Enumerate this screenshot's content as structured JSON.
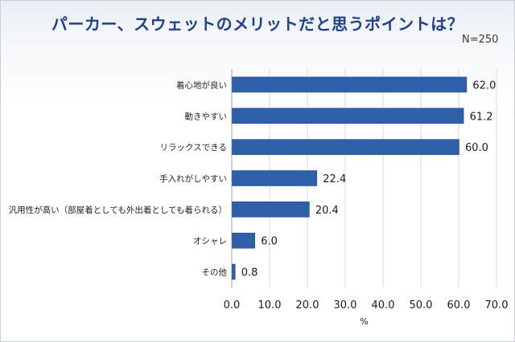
{
  "header": {
    "title": "パーカー、スウェットのメリットだと思うポイントは？",
    "n": "N=250"
  },
  "chart_data": {
    "type": "bar",
    "orientation": "horizontal",
    "title": "パーカー、スウェットのメリットだと思うポイントは？",
    "categories": [
      "着心地が良い",
      "動きやすい",
      "リラックスできる",
      "手入れがしやすい",
      "汎用性が高い（部屋着としても外出着としても着られる）",
      "オシャレ",
      "その他"
    ],
    "values": [
      62.0,
      61.2,
      60.0,
      22.4,
      20.4,
      6.0,
      0.8
    ],
    "value_labels": [
      "62.0",
      "61.2",
      "60.0",
      "22.4",
      "20.4",
      "6.0",
      "0.8"
    ],
    "xlabel": "%",
    "ylabel": "",
    "xlim": [
      0,
      70
    ],
    "xticks": [
      "0.0",
      "10.0",
      "20.0",
      "30.0",
      "40.0",
      "50.0",
      "60.0",
      "70.0"
    ],
    "grid": true,
    "bar_color": "#2e5fa8"
  }
}
